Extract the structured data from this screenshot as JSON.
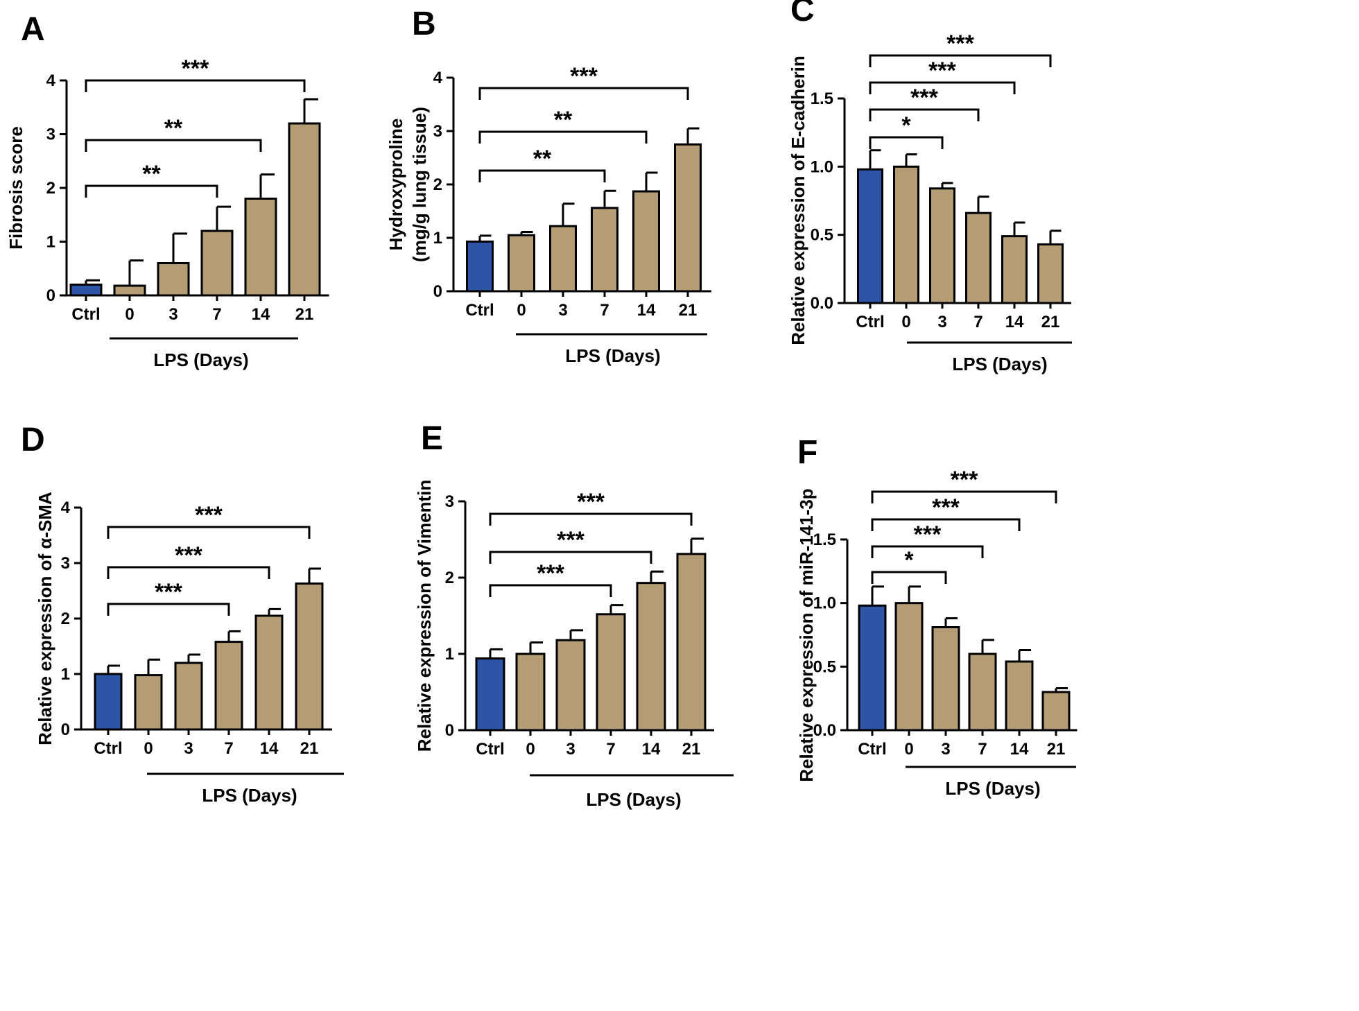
{
  "chart_data": [
    {
      "type": "bar",
      "letter": "A",
      "ylabel": "Fibrosis score",
      "ylabel2": "",
      "ylim": [
        0,
        4
      ],
      "yticks": [
        "0",
        "1",
        "2",
        "3",
        "4"
      ],
      "categories": [
        "Ctrl",
        "0",
        "3",
        "7",
        "14",
        "21"
      ],
      "group_label": "LPS (Days)",
      "values": [
        0.2,
        0.18,
        0.6,
        1.2,
        1.8,
        3.2
      ],
      "errors": [
        0.08,
        0.47,
        0.55,
        0.45,
        0.45,
        0.45
      ],
      "colors": [
        "#2e55a5",
        "#b49d75",
        "#b49d75",
        "#b49d75",
        "#b49d75",
        "#b49d75"
      ],
      "comparisons": [
        {
          "from": 0,
          "to": 3,
          "label": "**"
        },
        {
          "from": 0,
          "to": 4,
          "label": "**"
        },
        {
          "from": 0,
          "to": 5,
          "label": "***"
        }
      ]
    },
    {
      "type": "bar",
      "letter": "B",
      "ylabel": "Hydroxyproline",
      "ylabel2": "(mg/g lung tissue)",
      "ylim": [
        0,
        4
      ],
      "yticks": [
        "0",
        "1",
        "2",
        "3",
        "4"
      ],
      "categories": [
        "Ctrl",
        "0",
        "3",
        "7",
        "14",
        "21"
      ],
      "group_label": "LPS (Days)",
      "values": [
        0.93,
        1.05,
        1.22,
        1.56,
        1.87,
        2.75
      ],
      "errors": [
        0.11,
        0.06,
        0.42,
        0.32,
        0.35,
        0.3
      ],
      "colors": [
        "#2e55a5",
        "#b49d75",
        "#b49d75",
        "#b49d75",
        "#b49d75",
        "#b49d75"
      ],
      "comparisons": [
        {
          "from": 0,
          "to": 3,
          "label": "**"
        },
        {
          "from": 0,
          "to": 4,
          "label": "**"
        },
        {
          "from": 0,
          "to": 5,
          "label": "***"
        }
      ]
    },
    {
      "type": "bar",
      "letter": "C",
      "ylabel": "Relative expression of E-cadherin",
      "ylabel2": "",
      "ylim": [
        0,
        1.5
      ],
      "yticks": [
        "0.0",
        "0.5",
        "1.0",
        "1.5"
      ],
      "categories": [
        "Ctrl",
        "0",
        "3",
        "7",
        "14",
        "21"
      ],
      "group_label": "LPS (Days)",
      "values": [
        0.98,
        1.0,
        0.84,
        0.66,
        0.49,
        0.43
      ],
      "errors": [
        0.14,
        0.09,
        0.04,
        0.12,
        0.1,
        0.1
      ],
      "colors": [
        "#2e55a5",
        "#b49d75",
        "#b49d75",
        "#b49d75",
        "#b49d75",
        "#b49d75"
      ],
      "comparisons": [
        {
          "from": 0,
          "to": 2,
          "label": "*"
        },
        {
          "from": 0,
          "to": 3,
          "label": "***"
        },
        {
          "from": 0,
          "to": 4,
          "label": "***"
        },
        {
          "from": 0,
          "to": 5,
          "label": "***"
        }
      ]
    },
    {
      "type": "bar",
      "letter": "D",
      "ylabel": "Relative expression of α-SMA",
      "ylabel2": "",
      "ylim": [
        0,
        4
      ],
      "yticks": [
        "0",
        "1",
        "2",
        "3",
        "4"
      ],
      "categories": [
        "Ctrl",
        "0",
        "3",
        "7",
        "14",
        "21"
      ],
      "group_label": "LPS (Days)",
      "values": [
        1.0,
        0.98,
        1.2,
        1.58,
        2.05,
        2.63
      ],
      "errors": [
        0.15,
        0.28,
        0.15,
        0.19,
        0.12,
        0.27
      ],
      "colors": [
        "#2e55a5",
        "#b49d75",
        "#b49d75",
        "#b49d75",
        "#b49d75",
        "#b49d75"
      ],
      "comparisons": [
        {
          "from": 0,
          "to": 3,
          "label": "***"
        },
        {
          "from": 0,
          "to": 4,
          "label": "***"
        },
        {
          "from": 0,
          "to": 5,
          "label": "***"
        }
      ]
    },
    {
      "type": "bar",
      "letter": "E",
      "ylabel": "Relative expression of Vimentin",
      "ylabel2": "",
      "ylim": [
        0,
        3
      ],
      "yticks": [
        "0",
        "1",
        "2",
        "3"
      ],
      "categories": [
        "Ctrl",
        "0",
        "3",
        "7",
        "14",
        "21"
      ],
      "group_label": "LPS (Days)",
      "values": [
        0.94,
        1.0,
        1.18,
        1.52,
        1.93,
        2.31
      ],
      "errors": [
        0.12,
        0.15,
        0.13,
        0.12,
        0.15,
        0.2
      ],
      "colors": [
        "#2e55a5",
        "#b49d75",
        "#b49d75",
        "#b49d75",
        "#b49d75",
        "#b49d75"
      ],
      "comparisons": [
        {
          "from": 0,
          "to": 3,
          "label": "***"
        },
        {
          "from": 0,
          "to": 4,
          "label": "***"
        },
        {
          "from": 0,
          "to": 5,
          "label": "***"
        }
      ]
    },
    {
      "type": "bar",
      "letter": "F",
      "ylabel": "Relative expression of miR-141-3p",
      "ylabel2": "",
      "ylim": [
        0,
        1.5
      ],
      "yticks": [
        "0.0",
        "0.5",
        "1.0",
        "1.5"
      ],
      "categories": [
        "Ctrl",
        "0",
        "3",
        "7",
        "14",
        "21"
      ],
      "group_label": "LPS (Days)",
      "values": [
        0.98,
        1.0,
        0.81,
        0.6,
        0.54,
        0.3
      ],
      "errors": [
        0.15,
        0.13,
        0.07,
        0.11,
        0.09,
        0.03
      ],
      "colors": [
        "#2e55a5",
        "#b49d75",
        "#b49d75",
        "#b49d75",
        "#b49d75",
        "#b49d75"
      ],
      "comparisons": [
        {
          "from": 0,
          "to": 2,
          "label": "*"
        },
        {
          "from": 0,
          "to": 3,
          "label": "***"
        },
        {
          "from": 0,
          "to": 4,
          "label": "***"
        },
        {
          "from": 0,
          "to": 5,
          "label": "***"
        }
      ]
    }
  ]
}
